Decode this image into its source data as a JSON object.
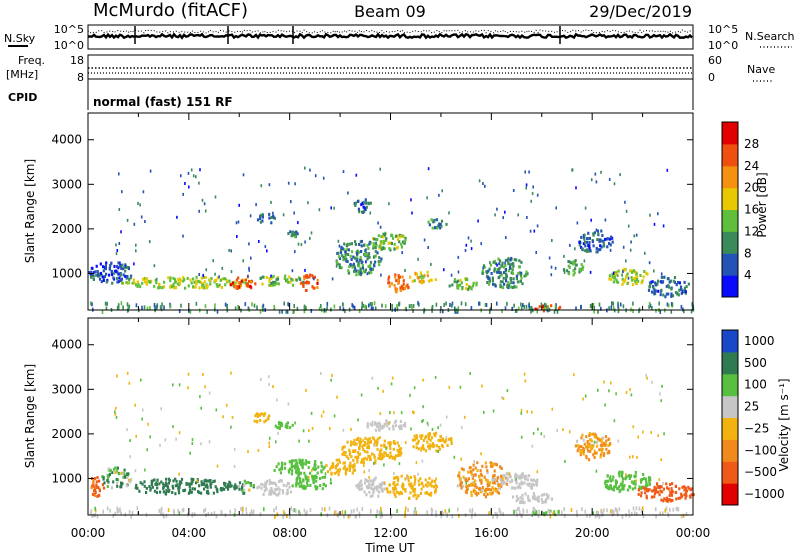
{
  "header": {
    "station": "McMurdo (fitACF)",
    "beam": "Beam 09",
    "date": "29/Dec/2019"
  },
  "noise_panel": {
    "left_label": "N.Sky",
    "right_label": "N.Search",
    "left_ticks": [
      "10^5",
      "10^0"
    ],
    "right_ticks": [
      "10^5",
      "10^0"
    ]
  },
  "freq_panel": {
    "left_label_top": "Freq.",
    "left_label_bottom": "[MHz]",
    "right_label": "Nave",
    "left_ticks": [
      "18",
      "8"
    ],
    "right_ticks": [
      "60",
      "0"
    ],
    "cpid_label": "CPID",
    "mode_text": "normal (fast) 151 RF"
  },
  "chart_data": [
    {
      "type": "heatmap",
      "name": "power",
      "ylabel": "Slant Range [km]",
      "ylim": [
        180,
        4600
      ],
      "yticks": [
        "1000",
        "2000",
        "3000",
        "4000"
      ],
      "xlim": [
        0,
        24
      ],
      "xticks": [
        "00:00",
        "04:00",
        "08:00",
        "12:00",
        "16:00",
        "20:00",
        "00:00"
      ],
      "colorbar_label": "Power [dB]",
      "colorbar_ticks": [
        "4",
        "8",
        "12",
        "16",
        "20",
        "24",
        "28"
      ],
      "colorbar_colors": [
        "#0a0aff",
        "#2353b4",
        "#3a8a5a",
        "#5fbe3c",
        "#e8c800",
        "#f59010",
        "#ef5010",
        "#e00000"
      ],
      "blobs": [
        {
          "t0": 0.0,
          "t1": 1.7,
          "r0": 800,
          "r1": 1280,
          "v": 8
        },
        {
          "t0": 1.3,
          "t1": 6.5,
          "r0": 700,
          "r1": 950,
          "v": 18
        },
        {
          "t0": 5.6,
          "t1": 6.6,
          "r0": 680,
          "r1": 960,
          "v": 28
        },
        {
          "t0": 6.6,
          "t1": 8.6,
          "r0": 760,
          "r1": 980,
          "v": 16
        },
        {
          "t0": 8.4,
          "t1": 9.1,
          "r0": 640,
          "r1": 1000,
          "v": 27
        },
        {
          "t0": 9.8,
          "t1": 11.6,
          "r0": 1000,
          "r1": 1760,
          "v": 12
        },
        {
          "t0": 11.8,
          "t1": 12.7,
          "r0": 600,
          "r1": 1020,
          "v": 26
        },
        {
          "t0": 12.6,
          "t1": 13.8,
          "r0": 820,
          "r1": 1080,
          "v": 20
        },
        {
          "t0": 14.2,
          "t1": 15.4,
          "r0": 660,
          "r1": 920,
          "v": 15
        },
        {
          "t0": 15.6,
          "t1": 17.4,
          "r0": 700,
          "r1": 1380,
          "v": 12
        },
        {
          "t0": 7.9,
          "t1": 8.3,
          "r0": 1850,
          "r1": 2000,
          "v": 12
        },
        {
          "t0": 6.7,
          "t1": 7.4,
          "r0": 2150,
          "r1": 2400,
          "v": 10
        },
        {
          "t0": 11.2,
          "t1": 12.6,
          "r0": 1550,
          "r1": 1950,
          "v": 16
        },
        {
          "t0": 10.5,
          "t1": 11.2,
          "r0": 2400,
          "r1": 2700,
          "v": 8
        },
        {
          "t0": 13.3,
          "t1": 14.2,
          "r0": 2050,
          "r1": 2250,
          "v": 12
        },
        {
          "t0": 18.8,
          "t1": 19.6,
          "r0": 1000,
          "r1": 1350,
          "v": 14
        },
        {
          "t0": 19.4,
          "t1": 20.8,
          "r0": 1500,
          "r1": 2000,
          "v": 8
        },
        {
          "t0": 20.6,
          "t1": 22.2,
          "r0": 780,
          "r1": 1130,
          "v": 18
        },
        {
          "t0": 22.2,
          "t1": 23.8,
          "r0": 500,
          "r1": 950,
          "v": 9
        },
        {
          "t0": 17.6,
          "t1": 18.7,
          "r0": 190,
          "r1": 310,
          "v": 28
        }
      ]
    },
    {
      "type": "heatmap",
      "name": "velocity",
      "ylabel": "Slant Range [km]",
      "ylim": [
        180,
        4600
      ],
      "yticks": [
        "1000",
        "2000",
        "3000",
        "4000"
      ],
      "xlim": [
        0,
        24
      ],
      "xticks": [
        "00:00",
        "04:00",
        "08:00",
        "12:00",
        "16:00",
        "20:00",
        "00:00"
      ],
      "xlabel": "Time UT",
      "colorbar_label": "Velocity [m s⁻¹]",
      "colorbar_ticks": [
        "1000",
        "500",
        "100",
        "25",
        "−25",
        "−100",
        "−500",
        "−1000"
      ],
      "colorbar_colors": [
        "#1848c8",
        "#2f7a50",
        "#58c040",
        "#c6c6c6",
        "#f2b210",
        "#f08a1c",
        "#f05a18",
        "#e00000"
      ],
      "blobs": [
        {
          "t0": 0.0,
          "t1": 0.6,
          "r0": 620,
          "r1": 1080,
          "v": -600
        },
        {
          "t0": 0.5,
          "t1": 1.7,
          "r0": 820,
          "r1": 1280,
          "v": 120
        },
        {
          "t0": 1.6,
          "t1": 5.9,
          "r0": 680,
          "r1": 1020,
          "v": 300
        },
        {
          "t0": 5.9,
          "t1": 6.6,
          "r0": 680,
          "r1": 980,
          "v": 120
        },
        {
          "t0": 6.6,
          "t1": 8.1,
          "r0": 640,
          "r1": 1000,
          "v": 0
        },
        {
          "t0": 8.0,
          "t1": 9.6,
          "r0": 760,
          "r1": 1100,
          "v": 80
        },
        {
          "t0": 7.3,
          "t1": 9.4,
          "r0": 1100,
          "r1": 1450,
          "v": 60
        },
        {
          "t0": 9.4,
          "t1": 10.6,
          "r0": 1100,
          "r1": 1450,
          "v": -60
        },
        {
          "t0": 10.0,
          "t1": 12.4,
          "r0": 1380,
          "r1": 1960,
          "v": -60
        },
        {
          "t0": 10.6,
          "t1": 11.8,
          "r0": 620,
          "r1": 1050,
          "v": 0
        },
        {
          "t0": 11.8,
          "t1": 13.8,
          "r0": 580,
          "r1": 1100,
          "v": -70
        },
        {
          "t0": 12.8,
          "t1": 14.4,
          "r0": 1650,
          "r1": 2050,
          "v": -80
        },
        {
          "t0": 14.6,
          "t1": 16.6,
          "r0": 620,
          "r1": 1400,
          "v": -150
        },
        {
          "t0": 16.0,
          "t1": 17.8,
          "r0": 760,
          "r1": 1150,
          "v": 0
        },
        {
          "t0": 16.6,
          "t1": 18.4,
          "r0": 480,
          "r1": 700,
          "v": 0
        },
        {
          "t0": 17.6,
          "t1": 18.8,
          "r0": 190,
          "r1": 310,
          "v": 60
        },
        {
          "t0": 19.3,
          "t1": 20.7,
          "r0": 1450,
          "r1": 2050,
          "v": -150
        },
        {
          "t0": 20.4,
          "t1": 22.3,
          "r0": 720,
          "r1": 1180,
          "v": 60
        },
        {
          "t0": 21.8,
          "t1": 24.0,
          "r0": 520,
          "r1": 920,
          "v": -700
        },
        {
          "t0": 6.5,
          "t1": 7.2,
          "r0": 2250,
          "r1": 2500,
          "v": -80
        },
        {
          "t0": 7.4,
          "t1": 8.1,
          "r0": 2150,
          "r1": 2300,
          "v": 80
        },
        {
          "t0": 11.0,
          "t1": 12.6,
          "r0": 2100,
          "r1": 2350,
          "v": 0
        }
      ]
    }
  ]
}
